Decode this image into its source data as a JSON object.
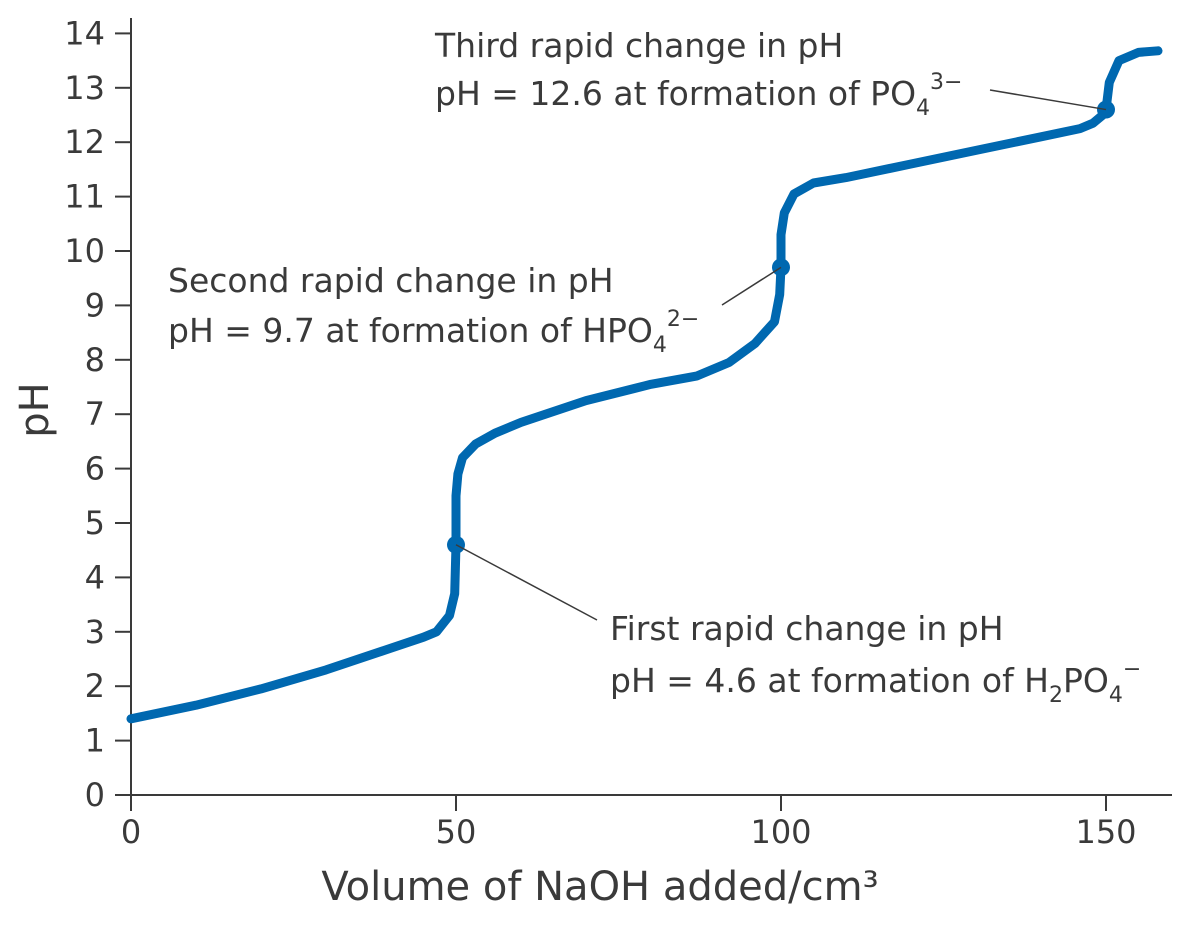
{
  "colors": {
    "curve": "#0068b0",
    "axis": "#3a3a3a",
    "background": "#ffffff"
  },
  "chart_data": {
    "type": "line",
    "title": "",
    "xlabel": "Volume of NaOH added/cm³",
    "ylabel": "pH",
    "xlim": [
      0,
      160
    ],
    "ylim": [
      0,
      14
    ],
    "x_ticks": [
      "0",
      "50",
      "100",
      "150"
    ],
    "y_ticks": [
      "0",
      "1",
      "2",
      "3",
      "4",
      "5",
      "6",
      "7",
      "8",
      "9",
      "10",
      "11",
      "12",
      "13",
      "14"
    ],
    "grid": false,
    "legend": "none",
    "series": [
      {
        "points": [
          [
            0,
            1.4
          ],
          [
            10,
            1.65
          ],
          [
            20,
            1.95
          ],
          [
            30,
            2.3
          ],
          [
            40,
            2.7
          ],
          [
            45,
            2.9
          ],
          [
            47,
            3.0
          ],
          [
            49,
            3.3
          ],
          [
            49.8,
            3.7
          ],
          [
            50,
            4.6
          ],
          [
            50,
            5.5
          ],
          [
            50.3,
            5.9
          ],
          [
            51,
            6.2
          ],
          [
            53,
            6.45
          ],
          [
            56,
            6.65
          ],
          [
            60,
            6.85
          ],
          [
            70,
            7.25
          ],
          [
            80,
            7.55
          ],
          [
            87,
            7.7
          ],
          [
            92,
            7.95
          ],
          [
            96,
            8.3
          ],
          [
            99,
            8.7
          ],
          [
            99.8,
            9.2
          ],
          [
            100,
            9.7
          ],
          [
            100,
            10.3
          ],
          [
            100.5,
            10.7
          ],
          [
            102,
            11.05
          ],
          [
            105,
            11.25
          ],
          [
            110,
            11.35
          ],
          [
            120,
            11.6
          ],
          [
            130,
            11.85
          ],
          [
            140,
            12.1
          ],
          [
            146,
            12.25
          ],
          [
            148,
            12.35
          ],
          [
            149.5,
            12.5
          ],
          [
            150,
            12.6
          ],
          [
            150.5,
            13.1
          ],
          [
            152,
            13.5
          ],
          [
            155,
            13.65
          ],
          [
            158,
            13.68
          ]
        ]
      }
    ],
    "markers": [
      {
        "x": 50,
        "y": 4.6
      },
      {
        "x": 100,
        "y": 9.7
      },
      {
        "x": 150,
        "y": 12.6
      }
    ],
    "annotations": [
      {
        "line1": "First rapid change in pH",
        "line2": "pH = 4.6 at formation of H",
        "sub": "2",
        "mid": "PO",
        "sub2": "4",
        "sup": "−"
      },
      {
        "line1": "Second rapid change in pH",
        "line2": "pH = 9.7 at formation of HPO",
        "sub": "4",
        "sup": "2−"
      },
      {
        "line1": "Third rapid change in pH",
        "line2": "pH = 12.6 at formation of PO",
        "sub": "4",
        "sup": "3−"
      }
    ]
  }
}
